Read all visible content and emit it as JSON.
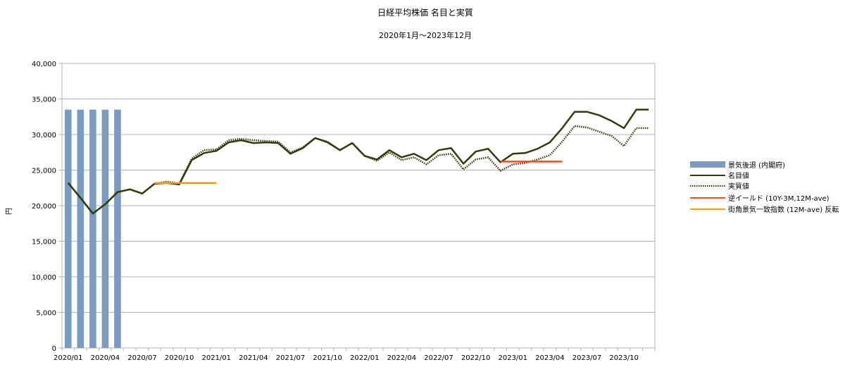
{
  "chart_data": {
    "type": "line",
    "title": "日経平均株価  名目と実質",
    "subtitle": "2020年1月～2023年12月",
    "ylabel": "円",
    "xlabel": "",
    "ylim": [
      0,
      40000
    ],
    "y_ticks": [
      0,
      5000,
      10000,
      15000,
      20000,
      25000,
      30000,
      35000,
      40000
    ],
    "y_tick_labels": [
      "0",
      "5,000",
      "10,000",
      "15,000",
      "20,000",
      "25,000",
      "30,000",
      "35,000",
      "40,000"
    ],
    "x_tick_labels": [
      "2020/01",
      "2020/04",
      "2020/07",
      "2020/10",
      "2021/01",
      "2021/04",
      "2021/07",
      "2021/10",
      "2022/01",
      "2022/04",
      "2022/07",
      "2022/10",
      "2023/01",
      "2023/04",
      "2023/07",
      "2023/10"
    ],
    "x_tick_indices": [
      0,
      3,
      6,
      9,
      12,
      15,
      18,
      21,
      24,
      27,
      30,
      33,
      36,
      39,
      42,
      45
    ],
    "n_months": 48,
    "grid": true,
    "legend_position": "right",
    "series": [
      {
        "name": "景気後退 (内閣府)",
        "kind": "bar",
        "color": "#7b9cc0",
        "values": [
          33500,
          33500,
          33500,
          33500,
          33500,
          null,
          null,
          null,
          null,
          null,
          null,
          null,
          null,
          null,
          null,
          null,
          null,
          null,
          null,
          null,
          null,
          null,
          null,
          null,
          null,
          null,
          null,
          null,
          null,
          null,
          null,
          null,
          null,
          null,
          null,
          null,
          null,
          null,
          null,
          null,
          null,
          null,
          null,
          null,
          null,
          null,
          null,
          null
        ]
      },
      {
        "name": "名目値",
        "kind": "line",
        "color": "#2f3c0c",
        "dash": "solid",
        "values": [
          23200,
          21100,
          18900,
          20200,
          21900,
          22300,
          21700,
          23100,
          23200,
          23000,
          26400,
          27400,
          27700,
          28900,
          29200,
          28800,
          28900,
          28800,
          27300,
          28100,
          29500,
          28900,
          27800,
          28800,
          27000,
          26500,
          27800,
          26800,
          27300,
          26400,
          27800,
          28100,
          25900,
          27600,
          28000,
          26100,
          27300,
          27400,
          28000,
          28900,
          30900,
          33200,
          33200,
          32700,
          31900,
          30900,
          33500,
          33500
        ]
      },
      {
        "name": "実質値",
        "kind": "line",
        "color": "#2f3c0c",
        "dash": "dotted",
        "values": [
          23200,
          21100,
          18900,
          20200,
          21900,
          22300,
          21700,
          23100,
          23400,
          23100,
          26600,
          27800,
          27900,
          29200,
          29400,
          29200,
          29100,
          29000,
          27500,
          28200,
          29500,
          29000,
          27800,
          28800,
          27000,
          26300,
          27500,
          26400,
          26800,
          25800,
          27100,
          27300,
          25100,
          26500,
          26800,
          24900,
          25800,
          26000,
          26500,
          27100,
          29000,
          31200,
          31000,
          30400,
          29800,
          28400,
          30900,
          30900
        ]
      },
      {
        "name": "逆イールド (10Y-3M,12M-ave)",
        "kind": "line",
        "color": "#ff4a1c",
        "dash": "solid",
        "values": [
          null,
          null,
          null,
          null,
          null,
          null,
          null,
          null,
          null,
          null,
          null,
          null,
          null,
          null,
          null,
          null,
          null,
          null,
          null,
          null,
          null,
          null,
          null,
          null,
          null,
          null,
          null,
          null,
          null,
          null,
          null,
          null,
          null,
          null,
          null,
          26200,
          26200,
          26200,
          26200,
          26200,
          26200,
          null,
          null,
          null,
          null,
          null,
          null,
          null
        ]
      },
      {
        "name": "街角景気一致指数 (12M-ave) 反転",
        "kind": "line",
        "color": "#ff9a1c",
        "dash": "solid",
        "values": [
          null,
          null,
          null,
          null,
          null,
          null,
          null,
          23200,
          23200,
          23200,
          23200,
          23200,
          23200,
          null,
          null,
          null,
          null,
          null,
          null,
          null,
          null,
          null,
          null,
          null,
          null,
          null,
          null,
          null,
          null,
          null,
          null,
          null,
          null,
          null,
          null,
          null,
          null,
          null,
          null,
          null,
          null,
          null,
          null,
          null,
          null,
          null,
          null,
          null
        ]
      }
    ]
  }
}
